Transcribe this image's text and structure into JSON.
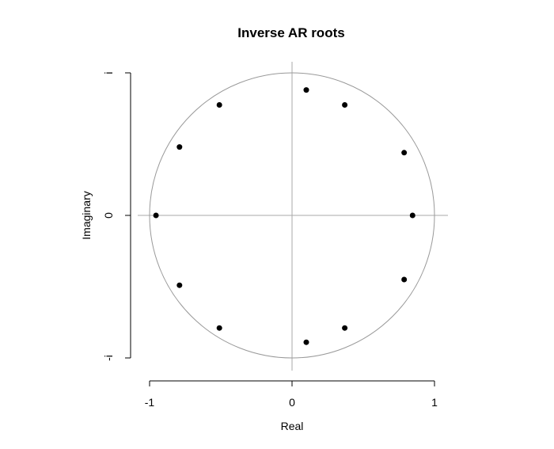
{
  "chart_data": {
    "type": "scatter",
    "title": "Inverse AR roots",
    "xlabel": "Real",
    "ylabel": "Imaginary",
    "xlim": [
      -1,
      1
    ],
    "ylim": [
      -1,
      1
    ],
    "x_ticks": [
      {
        "value": -1,
        "label": "-1"
      },
      {
        "value": 0,
        "label": "0"
      },
      {
        "value": 1,
        "label": "1"
      }
    ],
    "y_ticks": [
      {
        "value": -1,
        "label": "-i"
      },
      {
        "value": 0,
        "label": "0"
      },
      {
        "value": 1,
        "label": "i"
      }
    ],
    "unit_circle": true,
    "reference_lines": {
      "x": 0,
      "y": 0
    },
    "colors": {
      "points": "#000000",
      "circle": "#999999",
      "reference": "#aaaaaa",
      "axes": "#000000"
    },
    "points": [
      {
        "x": 0.846,
        "y": 0.0
      },
      {
        "x": 0.787,
        "y": 0.44
      },
      {
        "x": 0.787,
        "y": -0.45
      },
      {
        "x": 0.37,
        "y": 0.775
      },
      {
        "x": 0.37,
        "y": -0.79
      },
      {
        "x": 0.1,
        "y": 0.88
      },
      {
        "x": 0.1,
        "y": -0.89
      },
      {
        "x": -0.51,
        "y": 0.775
      },
      {
        "x": -0.51,
        "y": -0.79
      },
      {
        "x": -0.79,
        "y": 0.48
      },
      {
        "x": -0.79,
        "y": -0.49
      },
      {
        "x": -0.955,
        "y": 0.0
      }
    ]
  }
}
